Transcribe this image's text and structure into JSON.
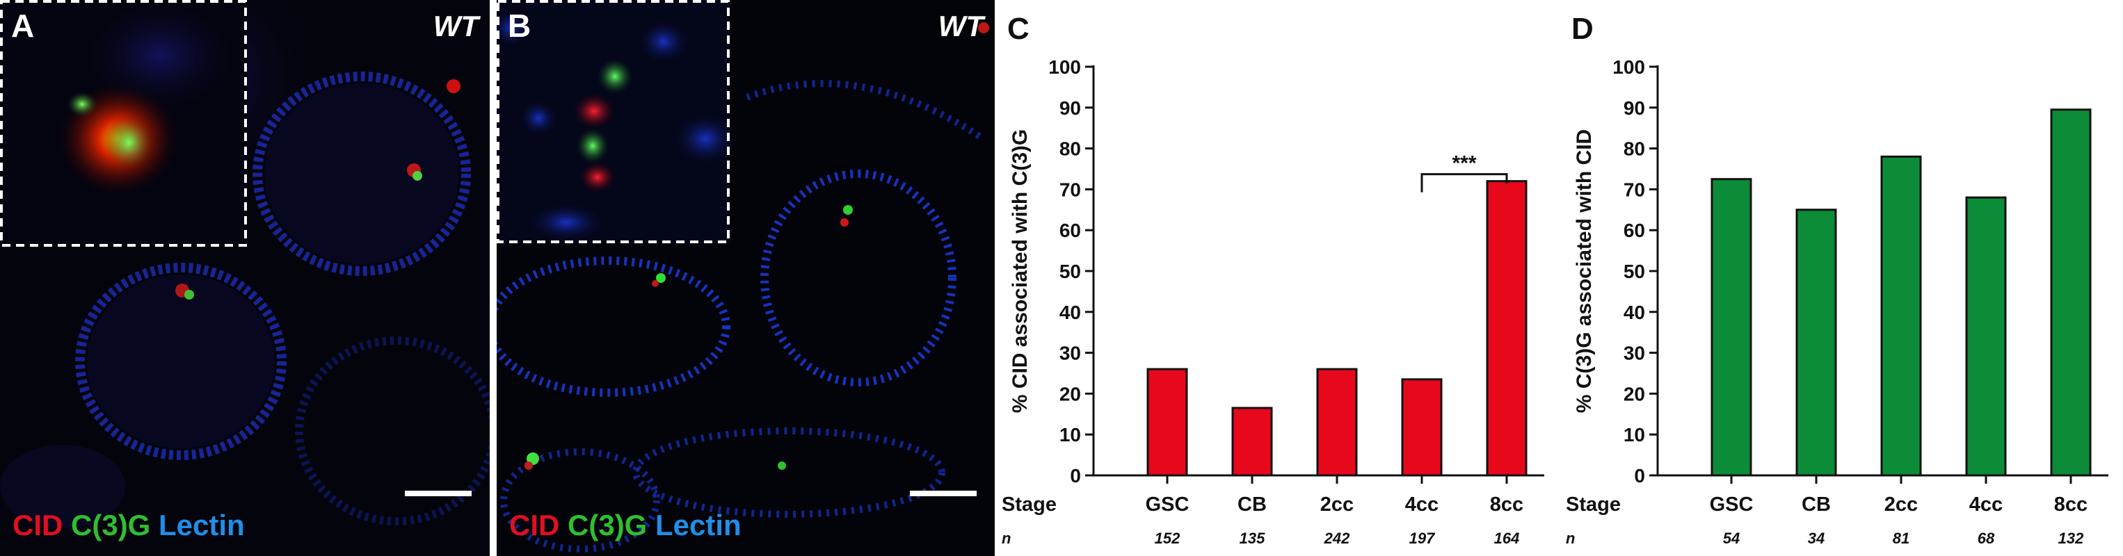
{
  "panels": {
    "a": {
      "letter": "A",
      "genotype": "WT",
      "stain": {
        "red": "CID",
        "green": "C(3)G",
        "blue": "Lectin"
      }
    },
    "b": {
      "letter": "B",
      "genotype": "WT",
      "stain": {
        "red": "CID",
        "green": "C(3)G",
        "blue": "Lectin"
      }
    }
  },
  "colors": {
    "cid_bar": "#e8081c",
    "c3g_bar": "#0c8c38",
    "stain_red": "#e01020",
    "stain_green": "#2fbf2f",
    "stain_blue": "#1f8fe8"
  },
  "chart_data": [
    {
      "type": "bar",
      "panel_label": "C",
      "ylabel": "% CID associated with C(3)G",
      "ylim": [
        0,
        100
      ],
      "yticks": [
        0,
        10,
        20,
        30,
        40,
        50,
        60,
        70,
        80,
        90,
        100
      ],
      "row_labels": {
        "stage": "Stage",
        "n": "n"
      },
      "categories": [
        "GSC",
        "CB",
        "2cc",
        "4cc",
        "8cc"
      ],
      "values": [
        26,
        16.5,
        26,
        23.5,
        72
      ],
      "n": [
        "152",
        "135",
        "242",
        "197",
        "164"
      ],
      "bar_color": "#e8081c",
      "significance": {
        "from": "4cc",
        "to": "8cc",
        "label": "***"
      }
    },
    {
      "type": "bar",
      "panel_label": "D",
      "ylabel": "% C(3)G associated with CID",
      "ylim": [
        0,
        100
      ],
      "yticks": [
        0,
        10,
        20,
        30,
        40,
        50,
        60,
        70,
        80,
        90,
        100
      ],
      "row_labels": {
        "stage": "Stage",
        "n": "n"
      },
      "categories": [
        "GSC",
        "CB",
        "2cc",
        "4cc",
        "8cc"
      ],
      "values": [
        72.5,
        65,
        78,
        68,
        89.5
      ],
      "n": [
        "54",
        "34",
        "81",
        "68",
        "132"
      ],
      "bar_color": "#0c8c38"
    }
  ]
}
